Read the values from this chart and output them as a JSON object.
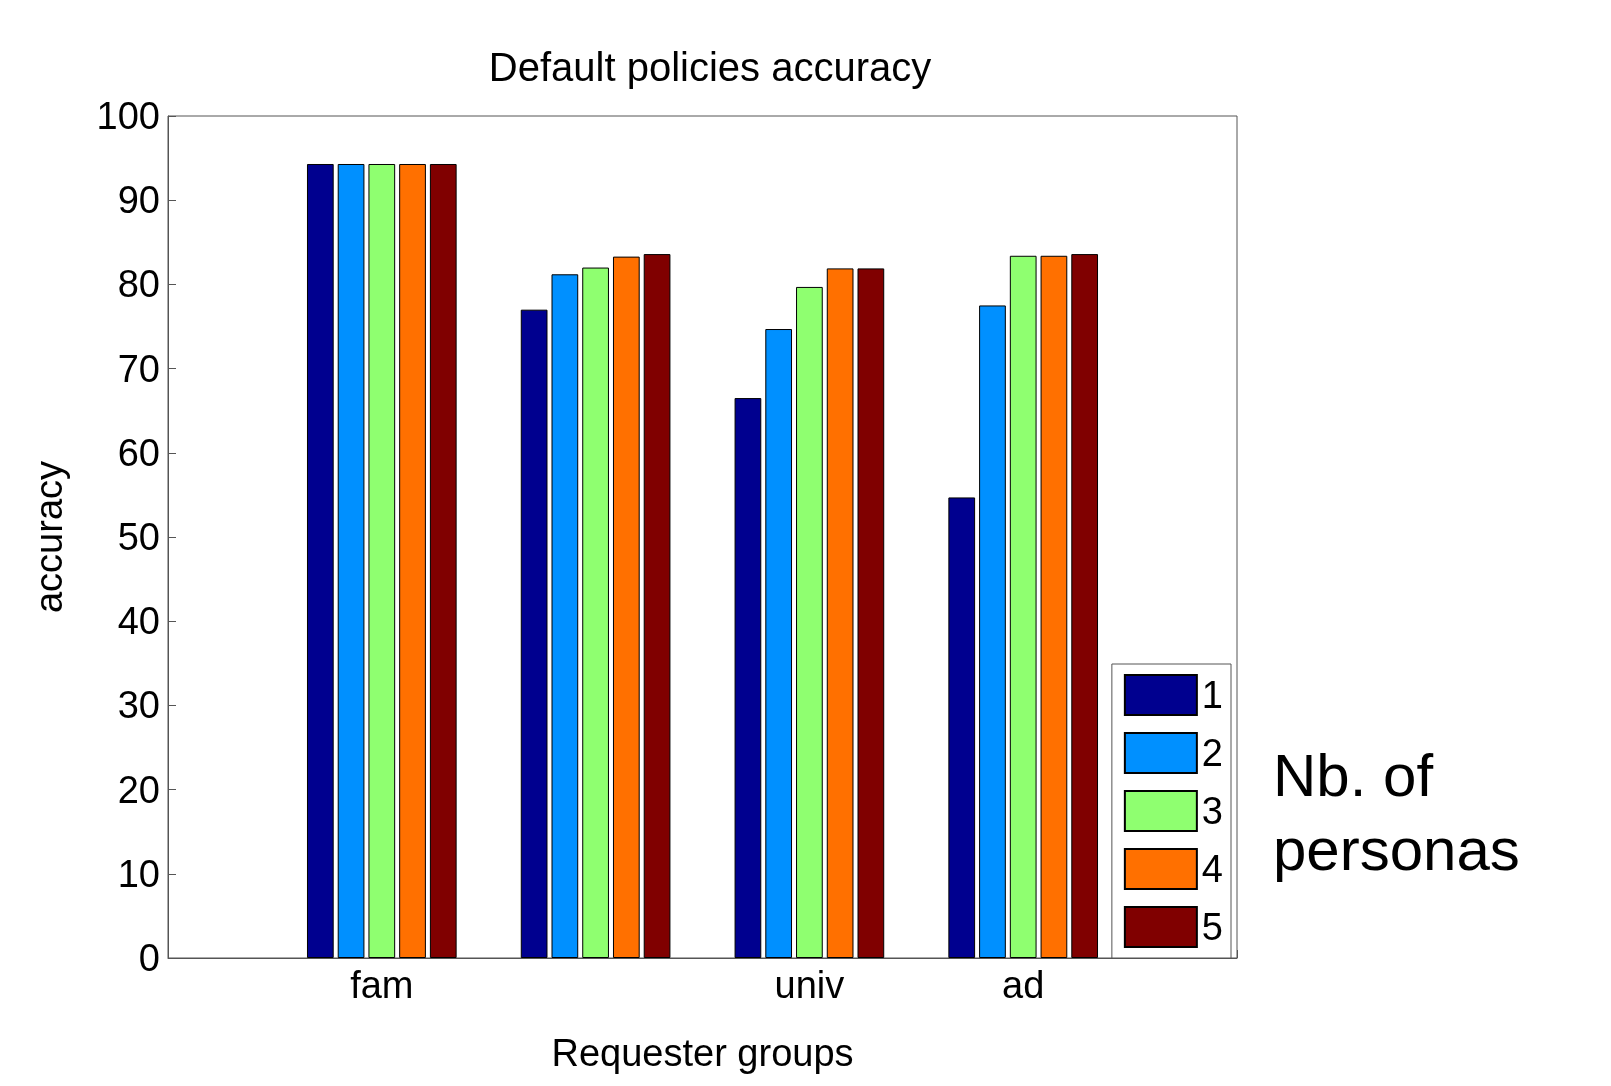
{
  "chart_data": {
    "type": "bar",
    "title": "Default policies accuracy",
    "xlabel": "Requester groups",
    "ylabel": "accuracy",
    "legend_title": "Nb. of personas",
    "categories": [
      "fam",
      null,
      "univ",
      "ad"
    ],
    "series": [
      {
        "name": "1",
        "color": "#00008f",
        "values": [
          94.3,
          77,
          66.5,
          54.7
        ]
      },
      {
        "name": "2",
        "color": "#0090ff",
        "values": [
          94.3,
          81.2,
          74.7,
          77.5
        ]
      },
      {
        "name": "3",
        "color": "#8fff70",
        "values": [
          94.3,
          82,
          79.7,
          83.4
        ]
      },
      {
        "name": "4",
        "color": "#ff7000",
        "values": [
          94.3,
          83.3,
          81.9,
          83.4
        ]
      },
      {
        "name": "5",
        "color": "#800000",
        "values": [
          94.3,
          83.6,
          81.9,
          83.6
        ]
      }
    ],
    "ylim": [
      0,
      100
    ],
    "yticks": [
      0,
      10,
      20,
      30,
      40,
      50,
      60,
      70,
      80,
      90,
      100
    ],
    "grid": false,
    "legend": "bottom right"
  }
}
